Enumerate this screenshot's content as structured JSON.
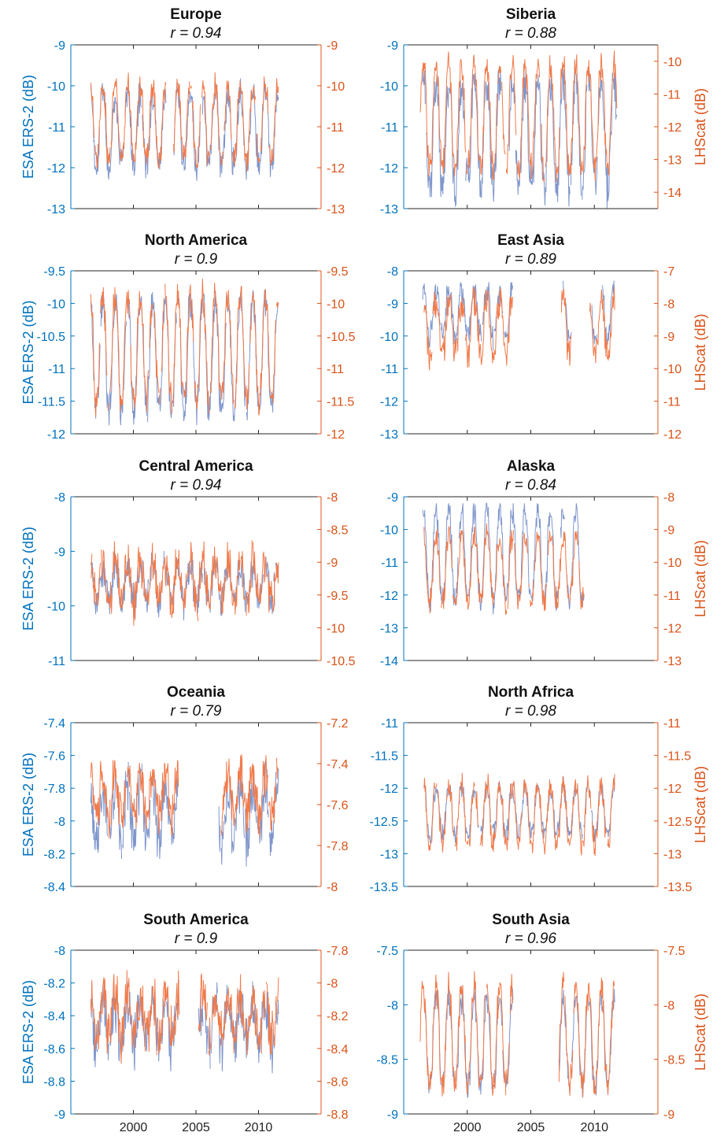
{
  "chart_data": [
    {
      "type": "line",
      "title": "Europe",
      "subtitle": "r = 0.94",
      "ylabel": "ESA ERS-2 (dB)",
      "ylabel_right": "",
      "xlim": [
        1995,
        2015
      ],
      "xticks": [
        "",
        "",
        ""
      ],
      "ylim": [
        -13,
        -9
      ],
      "yticks": [
        -9,
        -10,
        -11,
        -12,
        -13
      ],
      "ylim_right": [
        -13,
        -9
      ],
      "yticks_right": [
        -9,
        -10,
        -11,
        -12,
        -13
      ],
      "left_series": {
        "name": "",
        "mean": -11.1,
        "amp": 0.85,
        "noise": 0.3,
        "gaps": [
          [
            2002.6,
            2003.2
          ]
        ],
        "min": -12.7,
        "max": -9.8,
        "start": 1996.6,
        "end": 2011.6
      },
      "right_series": {
        "name": "",
        "mean": -10.9,
        "amp": 0.9,
        "noise": 0.25,
        "gaps": [
          [
            2002.6,
            2003.2
          ]
        ],
        "min": -12.3,
        "max": -9.3,
        "start": 1996.6,
        "end": 2011.6
      }
    },
    {
      "type": "line",
      "title": "Siberia",
      "subtitle": "r = 0.88",
      "ylabel": "",
      "ylabel_right": "LHScat (dB)",
      "xlim": [
        1995,
        2015
      ],
      "xticks": [
        "",
        "",
        ""
      ],
      "ylim": [
        -13,
        -9
      ],
      "yticks": [
        -9,
        -10,
        -11,
        -12,
        -13
      ],
      "ylim_right": [
        -14.5,
        -9.5
      ],
      "yticks_right": [
        -10,
        -11,
        -12,
        -13,
        -14
      ],
      "left_series": {
        "name": "",
        "mean": -11.2,
        "amp": 1.3,
        "noise": 0.4,
        "gaps": [
          [
            2002.7,
            2003.3
          ]
        ],
        "min": -13.0,
        "max": -9.6,
        "start": 1996.5,
        "end": 2011.8
      },
      "right_series": {
        "name": "",
        "mean": -11.7,
        "amp": 1.6,
        "noise": 0.35,
        "gaps": [],
        "min": -14.3,
        "max": -9.6,
        "start": 1996.3,
        "end": 2011.8
      }
    },
    {
      "type": "line",
      "title": "North America",
      "subtitle": "r = 0.9",
      "ylabel": "ESA ERS-2 (dB)",
      "ylabel_right": "",
      "xlim": [
        1995,
        2015
      ],
      "xticks": [
        "",
        "",
        ""
      ],
      "ylim": [
        -12,
        -9.5
      ],
      "yticks": [
        -9.5,
        -10,
        -10.5,
        -11,
        -11.5,
        -12
      ],
      "ylim_right": [
        -12,
        -9.5
      ],
      "yticks_right": [
        -9.5,
        -10,
        -10.5,
        -11,
        -11.5,
        -12
      ],
      "left_series": {
        "name": "",
        "mean": -10.8,
        "amp": 0.85,
        "noise": 0.2,
        "gaps": [],
        "min": -11.9,
        "max": -9.7,
        "start": 1996.6,
        "end": 2011.6
      },
      "right_series": {
        "name": "",
        "mean": -10.7,
        "amp": 0.8,
        "noise": 0.2,
        "gaps": [],
        "min": -11.8,
        "max": -9.6,
        "start": 1996.6,
        "end": 2011.6
      }
    },
    {
      "type": "line",
      "title": "East Asia",
      "subtitle": "r = 0.89",
      "ylabel": "",
      "ylabel_right": "LHScat (dB)",
      "xlim": [
        1995,
        2015
      ],
      "xticks": [
        "",
        "",
        ""
      ],
      "ylim": [
        -13,
        -8
      ],
      "yticks": [
        -8,
        -9,
        -10,
        -11,
        -12,
        -13
      ],
      "ylim_right": [
        -12,
        -7
      ],
      "yticks_right": [
        -7,
        -8,
        -9,
        -10,
        -11,
        -12
      ],
      "left_series": {
        "name": "",
        "mean": -9.3,
        "amp": 0.7,
        "noise": 0.3,
        "gaps": [
          [
            2003.6,
            2007.4
          ],
          [
            2008.2,
            2009.8
          ],
          [
            2010.2,
            2010.6
          ]
        ],
        "min": -12.5,
        "max": -8.3,
        "start": 1996.5,
        "end": 2011.6
      },
      "right_series": {
        "name": "",
        "mean": -8.7,
        "amp": 0.8,
        "noise": 0.4,
        "gaps": [
          [
            2003.6,
            2007.4
          ],
          [
            2008.2,
            2009.6
          ]
        ],
        "min": -11.6,
        "max": -7.5,
        "start": 1996.6,
        "end": 2011.6
      }
    },
    {
      "type": "line",
      "title": "Central America",
      "subtitle": "r = 0.94",
      "ylabel": "ESA ERS-2 (dB)",
      "ylabel_right": "",
      "xlim": [
        1995,
        2015
      ],
      "xticks": [
        "",
        "",
        ""
      ],
      "ylim": [
        -11,
        -8
      ],
      "yticks": [
        -8,
        -9,
        -10,
        -11
      ],
      "ylim_right": [
        -10.5,
        -8
      ],
      "yticks_right": [
        -8,
        -8.5,
        -9,
        -9.5,
        -10,
        -10.5
      ],
      "left_series": {
        "name": "",
        "mean": -9.6,
        "amp": 0.3,
        "noise": 0.25,
        "gaps": [],
        "min": -10.8,
        "max": -8.5,
        "start": 1996.6,
        "end": 2011.6
      },
      "right_series": {
        "name": "",
        "mean": -9.3,
        "amp": 0.3,
        "noise": 0.25,
        "gaps": [],
        "min": -10.4,
        "max": -8.55,
        "start": 1996.6,
        "end": 2011.6
      }
    },
    {
      "type": "line",
      "title": "Alaska",
      "subtitle": "r = 0.84",
      "ylabel": "",
      "ylabel_right": "LHScat (dB)",
      "xlim": [
        1995,
        2015
      ],
      "xticks": [
        "",
        "",
        ""
      ],
      "ylim": [
        -14,
        -9
      ],
      "yticks": [
        -9,
        -10,
        -11,
        -12,
        -13,
        -14
      ],
      "ylim_right": [
        -13,
        -8
      ],
      "yticks_right": [
        -8,
        -9,
        -10,
        -11,
        -12,
        -13
      ],
      "left_series": {
        "name": "",
        "mean": -10.8,
        "amp": 1.4,
        "noise": 0.3,
        "gaps": [],
        "min": -13.4,
        "max": -9.2,
        "start": 1996.5,
        "end": 2009.2
      },
      "right_series": {
        "name": "",
        "mean": -10.2,
        "amp": 1.0,
        "noise": 0.3,
        "gaps": [],
        "min": -11.8,
        "max": -8.4,
        "start": 1996.6,
        "end": 2009.2
      }
    },
    {
      "type": "line",
      "title": "Oceania",
      "subtitle": "r = 0.79",
      "ylabel": "ESA ERS-2 (dB)",
      "ylabel_right": "",
      "xlim": [
        1995,
        2015
      ],
      "xticks": [
        "",
        "",
        ""
      ],
      "ylim": [
        -8.4,
        -7.4
      ],
      "yticks": [
        -7.4,
        -7.6,
        -7.8,
        -8,
        -8.2,
        -8.4
      ],
      "ylim_right": [
        -8,
        -7.2
      ],
      "yticks_right": [
        -7.2,
        -7.4,
        -7.6,
        -7.8,
        -8
      ],
      "left_series": {
        "name": "",
        "mean": -7.95,
        "amp": 0.15,
        "noise": 0.12,
        "gaps": [
          [
            2003.6,
            2006.8
          ]
        ],
        "min": -8.36,
        "max": -7.6,
        "start": 1996.6,
        "end": 2011.6
      },
      "right_series": {
        "name": "",
        "mean": -7.55,
        "amp": 0.1,
        "noise": 0.08,
        "gaps": [
          [
            2003.6,
            2007.0
          ]
        ],
        "min": -7.85,
        "max": -7.25,
        "start": 1996.6,
        "end": 2011.6
      }
    },
    {
      "type": "line",
      "title": "North Africa",
      "subtitle": "r = 0.98",
      "ylabel": "",
      "ylabel_right": "LHScat (dB)",
      "xlim": [
        1995,
        2015
      ],
      "xticks": [
        "",
        "",
        ""
      ],
      "ylim": [
        -13.5,
        -11
      ],
      "yticks": [
        -11,
        -11.5,
        -12,
        -12.5,
        -13,
        -13.5
      ],
      "ylim_right": [
        -13.5,
        -11
      ],
      "yticks_right": [
        -11,
        -11.5,
        -12,
        -12.5,
        -13,
        -13.5
      ],
      "left_series": {
        "name": "",
        "mean": -12.35,
        "amp": 0.35,
        "noise": 0.12,
        "gaps": [],
        "min": -13.1,
        "max": -11.6,
        "start": 1996.6,
        "end": 2011.6
      },
      "right_series": {
        "name": "",
        "mean": -12.4,
        "amp": 0.45,
        "noise": 0.15,
        "gaps": [],
        "min": -13.25,
        "max": -11.2,
        "start": 1996.6,
        "end": 2011.6
      }
    },
    {
      "type": "line",
      "title": "South America",
      "subtitle": "r = 0.9",
      "ylabel": "ESA ERS-2 (dB)",
      "ylabel_right": "",
      "xlim": [
        1995,
        2015
      ],
      "xticks": [
        "2000",
        "2005",
        "2010"
      ],
      "ylim": [
        -9,
        -8
      ],
      "yticks": [
        -8,
        -8.2,
        -8.4,
        -8.6,
        -8.8,
        -9
      ],
      "ylim_right": [
        -8.8,
        -7.8
      ],
      "yticks_right": [
        -7.8,
        -8,
        -8.2,
        -8.4,
        -8.6,
        -8.8
      ],
      "left_series": {
        "name": "",
        "mean": -8.45,
        "amp": 0.12,
        "noise": 0.12,
        "gaps": [
          [
            2003.7,
            2005.2
          ]
        ],
        "min": -8.9,
        "max": -8.1,
        "start": 1996.6,
        "end": 2011.6
      },
      "right_series": {
        "name": "",
        "mean": -8.2,
        "amp": 0.12,
        "noise": 0.12,
        "gaps": [
          [
            2003.7,
            2005.2
          ]
        ],
        "min": -8.8,
        "max": -7.9,
        "start": 1996.6,
        "end": 2011.6
      }
    },
    {
      "type": "line",
      "title": "South Asia",
      "subtitle": "r = 0.96",
      "ylabel": "",
      "ylabel_right": "LHScat (dB)",
      "xlim": [
        1995,
        2015
      ],
      "xticks": [
        "2000",
        "2005",
        "2010"
      ],
      "ylim": [
        -9,
        -7.5
      ],
      "yticks": [
        -7.5,
        -8,
        -8.5,
        -9
      ],
      "ylim_right": [
        -9,
        -7.5
      ],
      "yticks_right": [
        -7.5,
        -8,
        -8.5,
        -9
      ],
      "left_series": {
        "name": "",
        "mean": -8.35,
        "amp": 0.4,
        "noise": 0.1,
        "gaps": [
          [
            2003.6,
            2007.2
          ]
        ],
        "min": -9.0,
        "max": -7.8,
        "start": 1996.6,
        "end": 2011.6
      },
      "right_series": {
        "name": "",
        "mean": -8.3,
        "amp": 0.45,
        "noise": 0.12,
        "gaps": [
          [
            2003.6,
            2007.2
          ]
        ],
        "min": -9.0,
        "max": -7.5,
        "start": 1996.3,
        "end": 2011.6
      }
    }
  ],
  "colors": {
    "left_axis": "#0072BD",
    "right_axis": "#D95319",
    "left_line": "#7F96CC",
    "right_line": "#F07A4A",
    "frame": "#262626"
  }
}
